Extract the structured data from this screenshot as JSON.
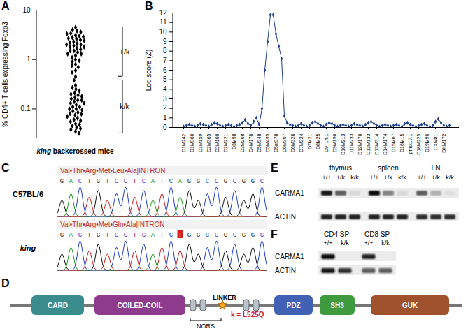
{
  "chart_data": [
    {
      "panel": "A",
      "type": "scatter",
      "y_label": "% CD4+ T cells expressing Foxp3",
      "x_label": "king backcrossed mice",
      "log": "y",
      "ylim": [
        0.025,
        10
      ],
      "yticks": [
        0.1,
        1,
        10
      ],
      "color": "#000000",
      "marker": "diamond",
      "series": [
        {
          "name": "+/k",
          "values": [
            4.5,
            4.0,
            3.8,
            3.6,
            3.4,
            3.3,
            3.1,
            3.0,
            2.9,
            2.8,
            2.7,
            2.6,
            2.5,
            2.4,
            2.3,
            2.2,
            2.1,
            2.0,
            2.0,
            1.9,
            1.8,
            1.8,
            1.7,
            1.6,
            1.5,
            1.5,
            1.4,
            1.3,
            1.3,
            1.2,
            1.1,
            1.0,
            0.95,
            0.9,
            0.8,
            0.75,
            0.7,
            0.6,
            0.55,
            0.45
          ]
        },
        {
          "name": "k/k",
          "values": [
            0.38,
            0.3,
            0.27,
            0.25,
            0.23,
            0.21,
            0.2,
            0.19,
            0.18,
            0.17,
            0.16,
            0.15,
            0.15,
            0.14,
            0.13,
            0.13,
            0.12,
            0.11,
            0.11,
            0.1,
            0.1,
            0.095,
            0.09,
            0.085,
            0.08,
            0.078,
            0.075,
            0.07,
            0.065,
            0.06,
            0.058,
            0.055,
            0.05,
            0.048,
            0.045,
            0.042,
            0.04,
            0.038,
            0.035,
            0.032
          ]
        }
      ]
    },
    {
      "panel": "B",
      "type": "line",
      "y_label": "Lod score (Z)",
      "ylim": [
        0,
        12
      ],
      "yticks": [
        0,
        1,
        2,
        3,
        4,
        5,
        6,
        7,
        8,
        9,
        10,
        11,
        12
      ],
      "color": "#1f3f8f",
      "marker": "diamond",
      "categories": [
        "D1M242",
        null,
        null,
        "D1M300",
        null,
        null,
        "D1M159",
        null,
        null,
        "D2M365",
        null,
        null,
        "D2M100",
        null,
        null,
        "D2M221",
        null,
        null,
        "D3M98",
        null,
        null,
        "D3M208",
        null,
        null,
        "D4M178",
        null,
        null,
        "D5M348",
        null,
        null,
        "D5M495",
        null,
        null,
        "D5m378",
        null,
        null,
        "D6M307",
        null,
        null,
        "D6M328",
        null,
        null,
        "D7M224",
        null,
        null,
        "D7M21",
        null,
        null,
        "D8M25",
        null,
        null,
        "D9_14.1",
        null,
        null,
        "D9M196",
        null,
        null,
        "D10M213",
        null,
        null,
        "D11M233",
        null,
        null,
        "D12M170",
        null,
        null,
        "D13M133",
        null,
        null,
        "D13M314",
        null,
        null,
        "D14M174",
        null,
        null,
        "D15M67",
        null,
        null,
        "D16M15",
        null,
        null,
        "pfmx17.1",
        null,
        null,
        "D18M225",
        null,
        null,
        "D19M96",
        null,
        null,
        "DXM81",
        null,
        null,
        "DXM172",
        null,
        null
      ],
      "values": [
        0.1,
        0.2,
        0.3,
        0.2,
        0.1,
        0.2,
        0.4,
        0.3,
        0.2,
        0.1,
        0.3,
        0.5,
        0.4,
        0.2,
        0.1,
        0.2,
        0.3,
        0.2,
        0.1,
        0.2,
        0.3,
        0.5,
        0.8,
        0.4,
        0.2,
        0.6,
        1.0,
        0.3,
        2.0,
        6.0,
        9.0,
        11.8,
        11.8,
        9.8,
        8.5,
        7.2,
        1.2,
        0.5,
        0.3,
        0.2,
        0.1,
        0.2,
        0.4,
        0.2,
        0.1,
        0.2,
        0.5,
        0.6,
        0.4,
        0.2,
        0.1,
        0.3,
        0.5,
        0.4,
        0.2,
        0.1,
        0.2,
        0.3,
        0.2,
        0.1,
        0.2,
        0.4,
        0.3,
        0.2,
        0.1,
        0.3,
        0.5,
        0.6,
        0.4,
        0.2,
        0.1,
        0.2,
        0.3,
        0.2,
        0.1,
        0.2,
        0.3,
        0.2,
        0.1,
        0.4,
        0.5,
        0.3,
        0.2,
        0.1,
        0.2,
        0.3,
        0.4,
        0.2,
        0.1,
        0.2,
        0.6,
        0.9,
        0.5,
        0.2,
        0.1,
        0.2
      ]
    }
  ],
  "panel_c": {
    "panel": "C",
    "rows": [
      {
        "strain": "C57BL/6",
        "translation": "Val•Thr•Arg•Met•Leu•Ala|INTRON",
        "sequence": "GACTGTCCTCATCAGGCCGCGGC"
      },
      {
        "strain": "king",
        "translation": "Val•Thr•Arg•Met•Gln•Ala|INTRON",
        "sequence": "GACTGTCCTCATCTGGCCGCGGC"
      }
    ]
  },
  "panel_d": {
    "panel": "D",
    "domains": [
      {
        "name": "CARD",
        "color": "#3b8c8c"
      },
      {
        "name": "COILED-COIL",
        "color": "#8e3b8e"
      },
      {
        "name": "PDZ",
        "color": "#4061b4"
      },
      {
        "name": "SH3",
        "color": "#3f9a3f"
      },
      {
        "name": "GUK",
        "color": "#a0522d"
      }
    ],
    "linker": "LINKER",
    "nors": "NORS",
    "mutation": "k = L525Q"
  },
  "panel_e": {
    "panel": "E",
    "groups": [
      "thymus",
      "spleen",
      "LN"
    ],
    "lanes": [
      "+/+",
      "+/k",
      "k/k"
    ],
    "blots": [
      {
        "protein": "CARMA1",
        "intensity": [
          0.9,
          0.6,
          0.08,
          0.95,
          0.45,
          0.08,
          0.6,
          0.25,
          0.05
        ]
      },
      {
        "protein": "ACTIN",
        "intensity": [
          0.85,
          0.85,
          0.85,
          0.85,
          0.85,
          0.85,
          0.8,
          0.8,
          0.8
        ]
      }
    ]
  },
  "panel_f": {
    "panel": "F",
    "groups": [
      "CD4 SP",
      "CD8 SP"
    ],
    "lanes": [
      "+/+",
      "k/k"
    ],
    "blots": [
      {
        "protein": "CARMA1",
        "intensity": [
          0.95,
          0.0,
          0.85,
          0.0
        ]
      },
      {
        "protein": "ACTIN",
        "intensity": [
          0.9,
          0.8,
          0.6,
          0.6
        ]
      }
    ]
  }
}
